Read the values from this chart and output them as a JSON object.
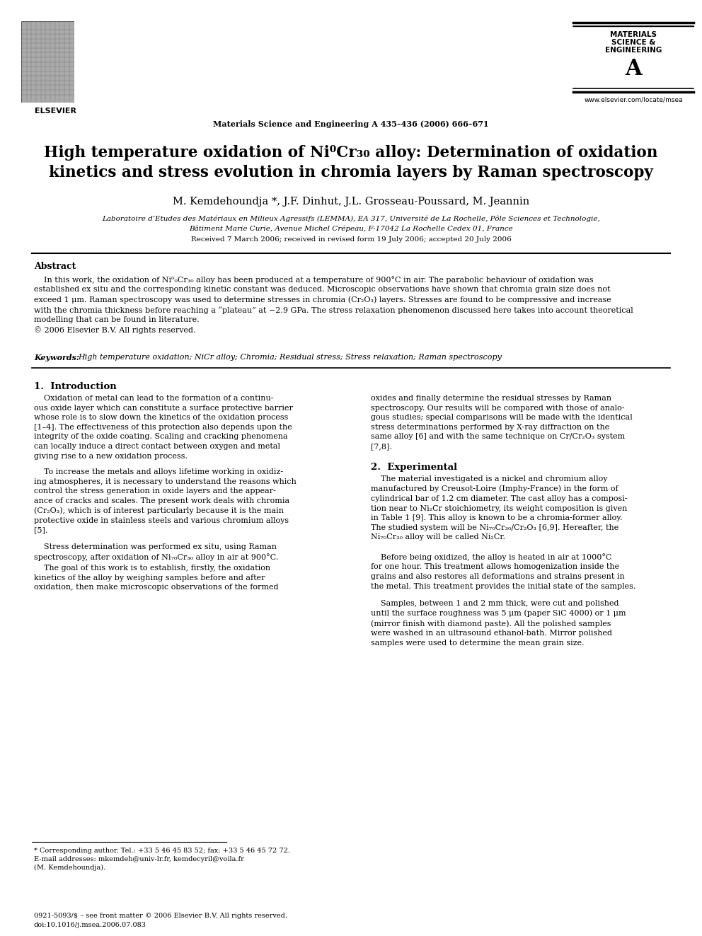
{
  "journal_ref": "Materials Science and Engineering A 435–436 (2006) 666–671",
  "journal_url": "www.elsevier.com/locate/msea",
  "authors": "M. Kemdehoundja *, J.F. Dinhut, J.L. Grosseau-Poussard, M. Jeannin",
  "affil1": "Laboratoire d’Etudes des Matériaux en Milieux Agressifs (LEMMA), EA 317, Université de La Rochelle, Pôle Sciences et Technologie,",
  "affil2": "Bâtiment Marie Curie, Avenue Michel Crépeau, F-17042 La Rochelle Cedex 01, France",
  "received": "Received 7 March 2006; received in revised form 19 July 2006; accepted 20 July 2006",
  "abstract_title": "Abstract",
  "keywords_label": "Keywords:",
  "keywords_text": "High temperature oxidation; NiCr alloy; Chromia; Residual stress; Stress relaxation; Raman spectroscopy",
  "section1_title": "1.  Introduction",
  "section2_title": "2.  Experimental",
  "footnote_star": "* Corresponding author. Tel.: +33 5 46 45 83 52; fax: +33 5 46 45 72 72.",
  "footnote_email": "E-mail addresses: mkemdeh@univ-lr.fr, kemdecyril@voila.fr",
  "footnote_name": "(M. Kemdehoundja).",
  "footer_issn": "0921-5093/$ – see front matter © 2006 Elsevier B.V. All rights reserved.",
  "footer_doi": "doi:10.1016/j.msea.2006.07.083",
  "bg_color": "#ffffff",
  "text_color": "#000000"
}
